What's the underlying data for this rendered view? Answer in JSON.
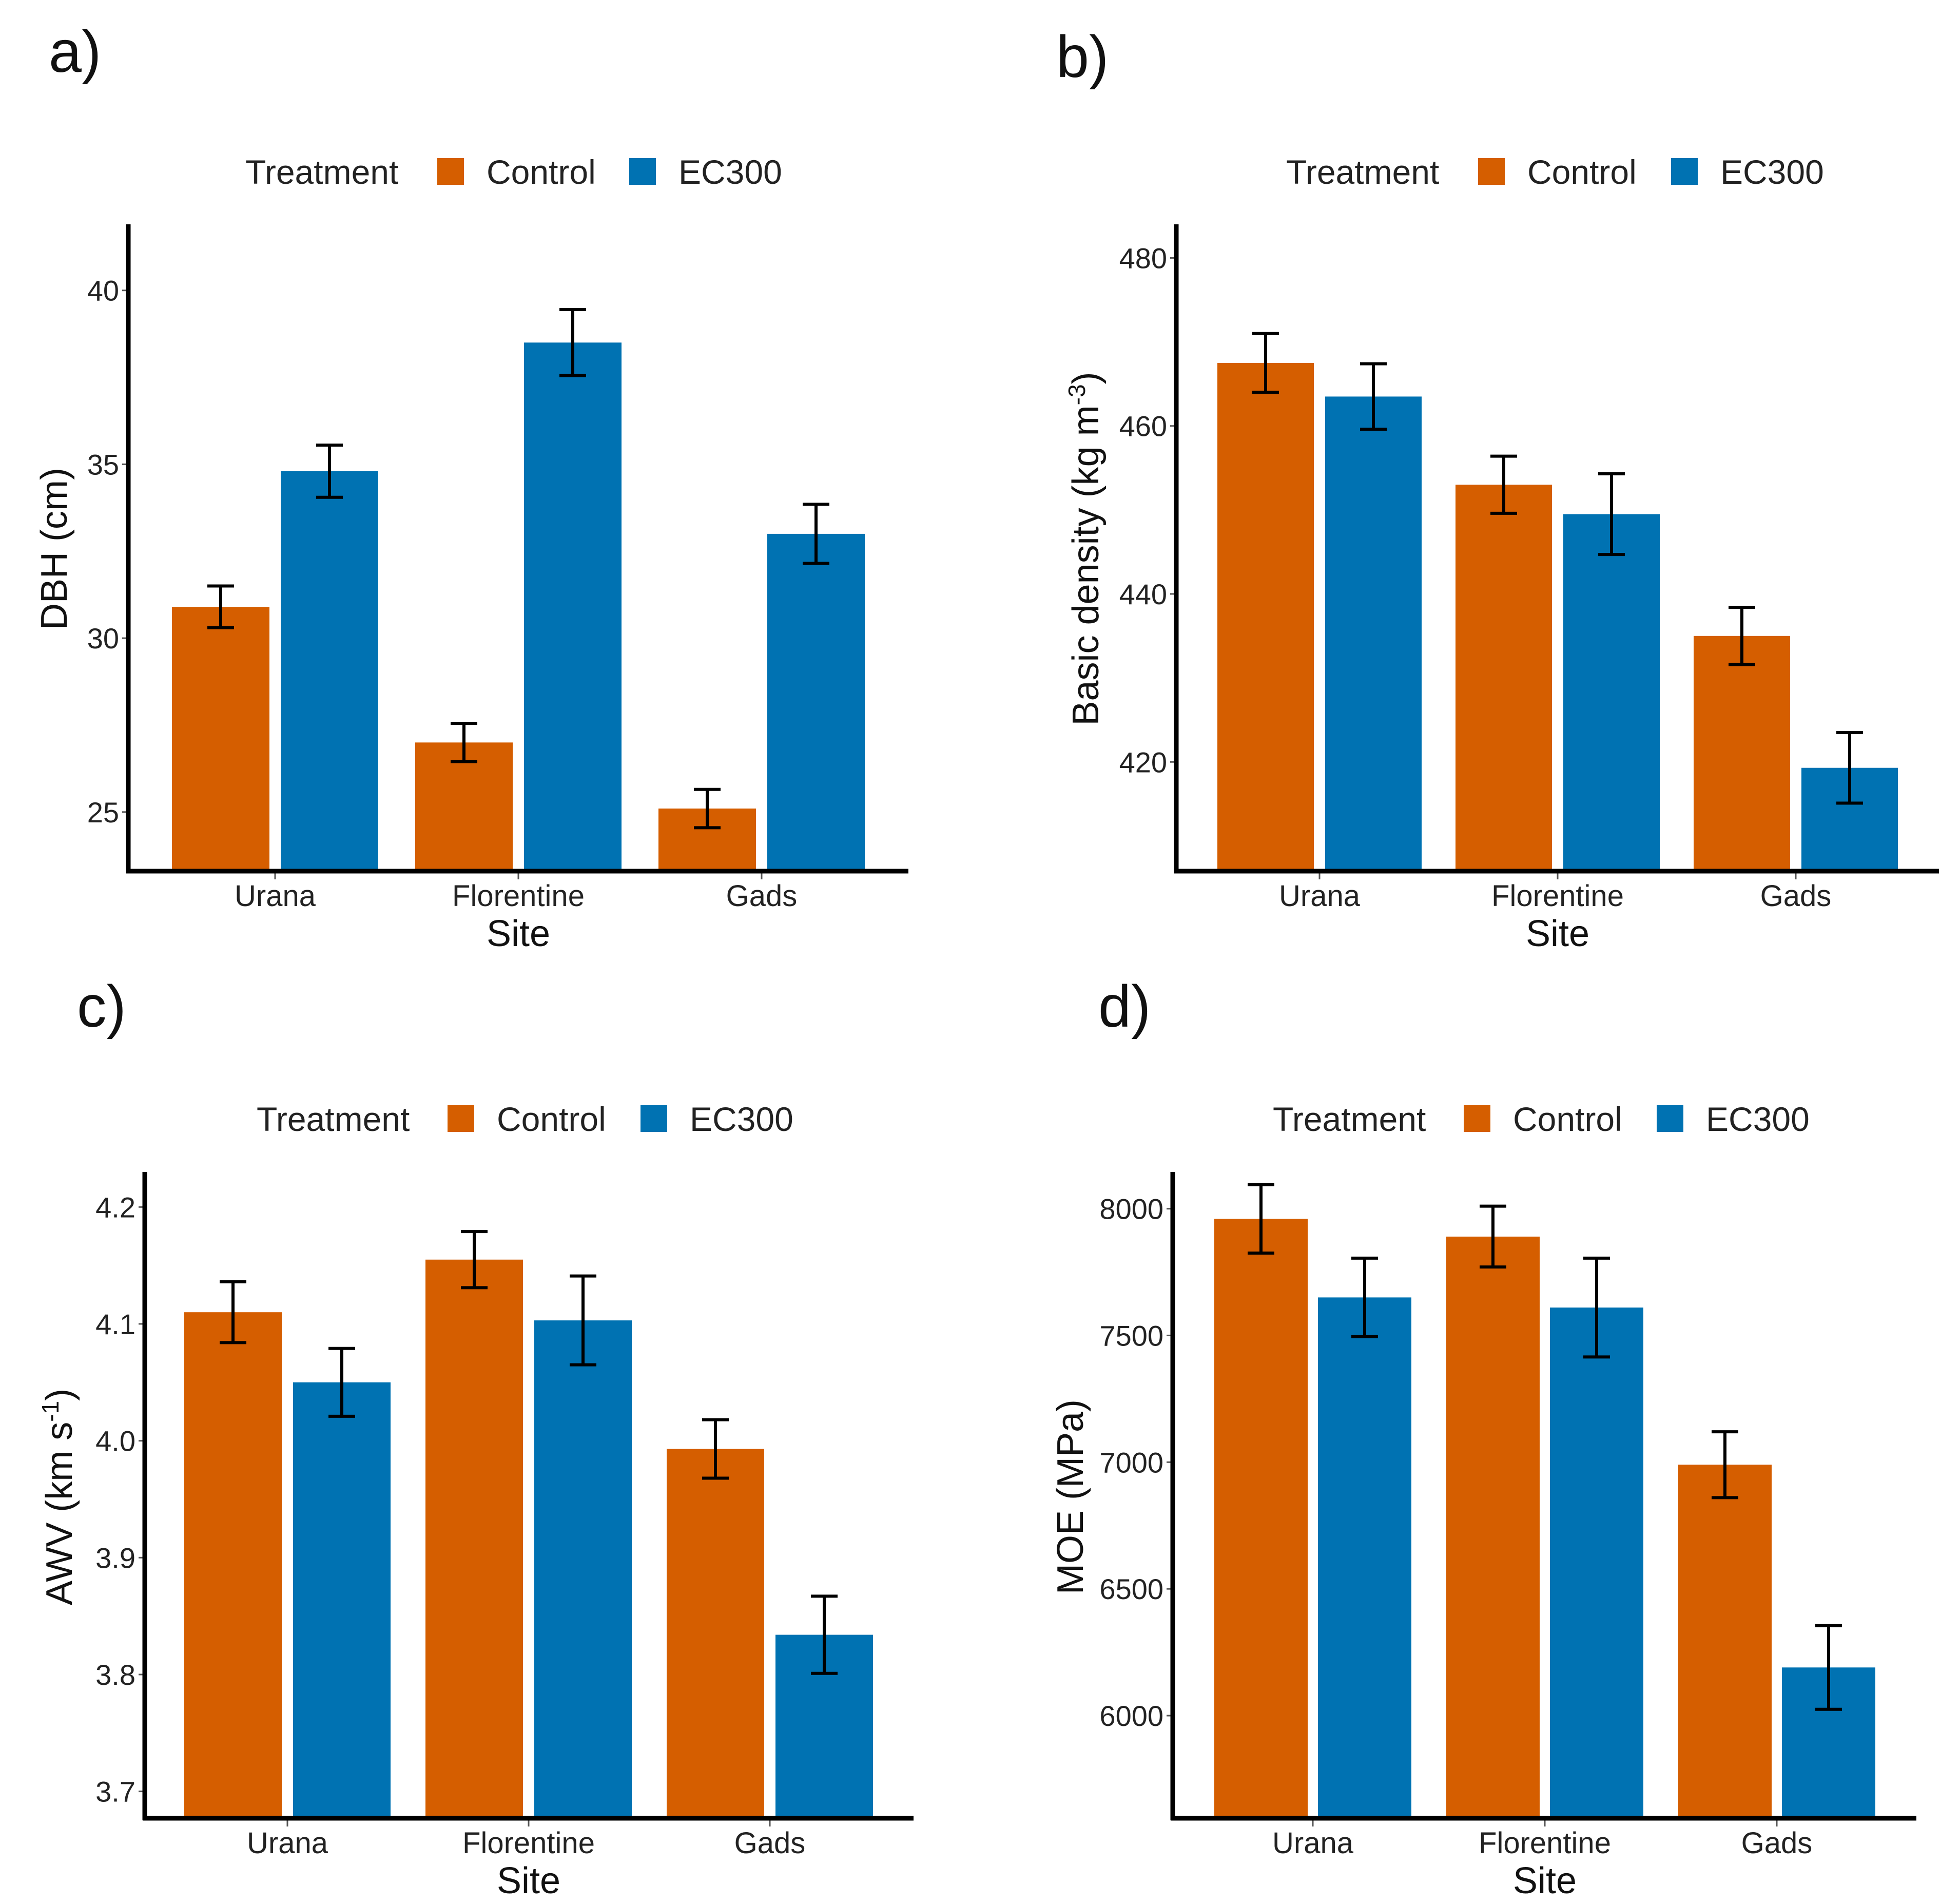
{
  "colors": {
    "Control": "#D55E00",
    "EC300": "#0072B2"
  },
  "legend": {
    "title": "Treatment",
    "items": [
      "Control",
      "EC300"
    ]
  },
  "chart_data": [
    {
      "panel": "a)",
      "type": "bar",
      "xlabel": "Site",
      "ylabel": "DBH (cm)",
      "categories": [
        "Urana",
        "Florentine",
        "Gads"
      ],
      "ylim": [
        23.3,
        41.9
      ],
      "yticks": [
        "25",
        "30",
        "35",
        "40"
      ],
      "series": [
        {
          "name": "Control",
          "values": [
            30.9,
            27.0,
            25.1
          ],
          "err": [
            0.6,
            0.55,
            0.55
          ]
        },
        {
          "name": "EC300",
          "values": [
            34.8,
            38.5,
            33.0
          ],
          "err": [
            0.75,
            0.95,
            0.85
          ]
        }
      ]
    },
    {
      "panel": "b)",
      "type": "bar",
      "xlabel": "Site",
      "ylabel_main": "Basic density (kg m",
      "ylabel_sup": "-3",
      "ylabel_end": ")",
      "categories": [
        "Urana",
        "Florentine",
        "Gads"
      ],
      "ylim": [
        407,
        484
      ],
      "yticks": [
        "420",
        "440",
        "460",
        "480"
      ],
      "series": [
        {
          "name": "Control",
          "values": [
            467.5,
            453.0,
            435.0
          ],
          "err": [
            3.5,
            3.4,
            3.4
          ]
        },
        {
          "name": "EC300",
          "values": [
            463.5,
            449.5,
            419.3
          ],
          "err": [
            3.9,
            4.8,
            4.2
          ]
        }
      ]
    },
    {
      "panel": "c)",
      "type": "bar",
      "xlabel": "Site",
      "ylabel_main": "AWV (km s",
      "ylabel_sup": "-1",
      "ylabel_end": ")",
      "categories": [
        "Urana",
        "Florentine",
        "Gads"
      ],
      "ylim": [
        3.677,
        4.23
      ],
      "yticks": [
        "3.7",
        "3.8",
        "3.9",
        "4.0",
        "4.1",
        "4.2"
      ],
      "series": [
        {
          "name": "Control",
          "values": [
            4.11,
            4.155,
            3.993
          ],
          "err": [
            0.026,
            0.024,
            0.025
          ]
        },
        {
          "name": "EC300",
          "values": [
            4.05,
            4.103,
            3.834
          ],
          "err": [
            0.029,
            0.038,
            0.033
          ]
        }
      ]
    },
    {
      "panel": "d)",
      "type": "bar",
      "xlabel": "Site",
      "ylabel": "MOE (MPa)",
      "categories": [
        "Urana",
        "Florentine",
        "Gads"
      ],
      "ylim": [
        5595,
        8145
      ],
      "yticks": [
        "6000",
        "6500",
        "7000",
        "7500",
        "8000"
      ],
      "series": [
        {
          "name": "Control",
          "values": [
            7960,
            7890,
            6990
          ],
          "err": [
            135,
            120,
            130
          ]
        },
        {
          "name": "EC300",
          "values": [
            7650,
            7610,
            6190
          ],
          "err": [
            155,
            195,
            165
          ]
        }
      ]
    }
  ]
}
